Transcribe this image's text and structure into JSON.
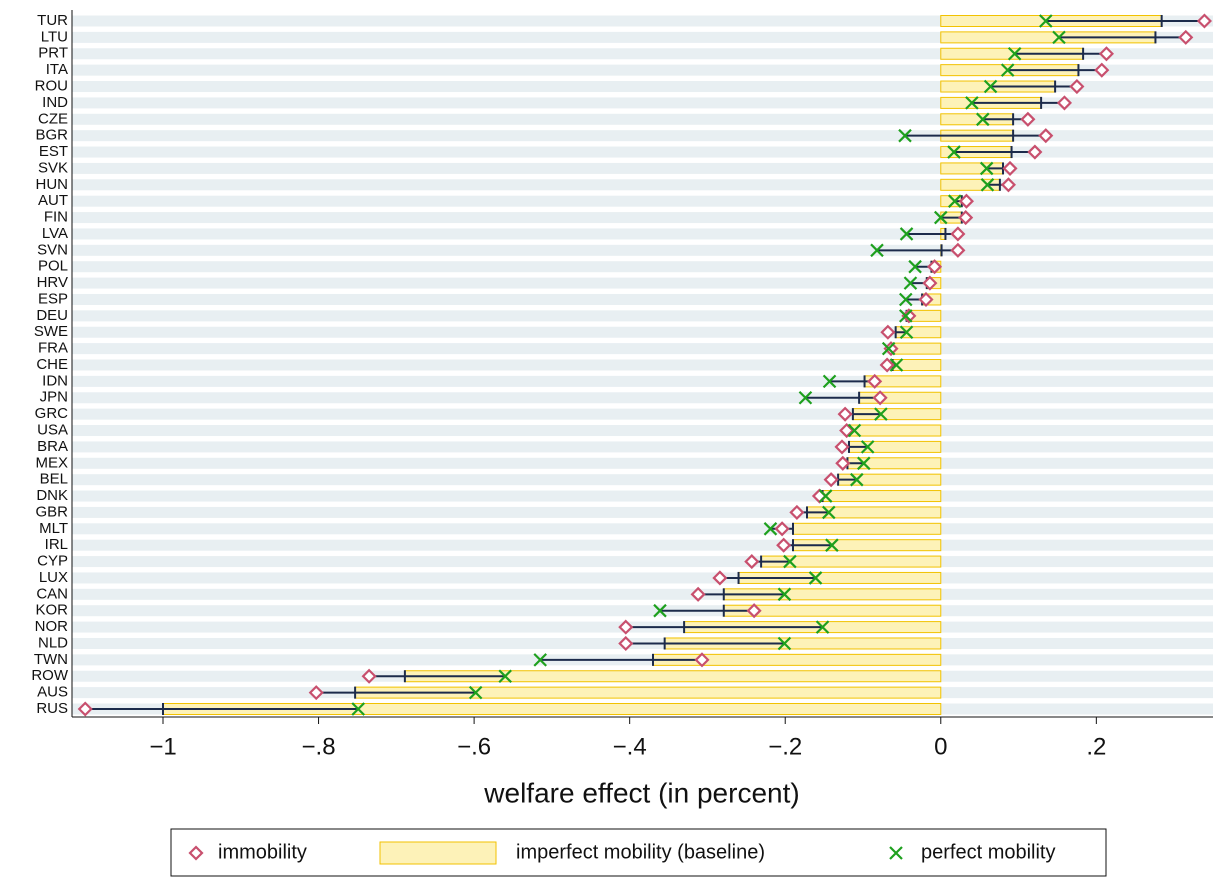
{
  "chart_data": {
    "type": "dot-bar",
    "xlabel": "welfare effect (in percent)",
    "categories": [
      "TUR",
      "LTU",
      "PRT",
      "ITA",
      "ROU",
      "IND",
      "CZE",
      "BGR",
      "EST",
      "SVK",
      "HUN",
      "AUT",
      "FIN",
      "LVA",
      "SVN",
      "POL",
      "HRV",
      "ESP",
      "DEU",
      "SWE",
      "FRA",
      "CHE",
      "IDN",
      "JPN",
      "GRC",
      "USA",
      "BRA",
      "MEX",
      "BEL",
      "DNK",
      "GBR",
      "MLT",
      "IRL",
      "CYP",
      "LUX",
      "CAN",
      "KOR",
      "NOR",
      "NLD",
      "TWN",
      "ROW",
      "AUS",
      "RUS"
    ],
    "series": [
      {
        "name": "immobility",
        "color": "#c8506e",
        "values": [
          0.339,
          0.315,
          0.213,
          0.207,
          0.175,
          0.159,
          0.112,
          0.135,
          0.121,
          0.089,
          0.087,
          0.033,
          0.032,
          0.022,
          0.022,
          -0.008,
          -0.014,
          -0.019,
          -0.041,
          -0.068,
          -0.064,
          -0.069,
          -0.085,
          -0.078,
          -0.123,
          -0.121,
          -0.127,
          -0.126,
          -0.141,
          -0.156,
          -0.185,
          -0.204,
          -0.202,
          -0.243,
          -0.284,
          -0.312,
          -0.24,
          -0.405,
          -0.405,
          -0.307,
          -0.735,
          -0.803,
          -1.1
        ]
      },
      {
        "name": "imperfect mobility (baseline)",
        "color": "#fdf2b8",
        "values": [
          0.284,
          0.276,
          0.183,
          0.177,
          0.147,
          0.129,
          0.093,
          0.093,
          0.091,
          0.08,
          0.076,
          0.027,
          0.027,
          0.006,
          0.001,
          -0.012,
          -0.018,
          -0.024,
          -0.044,
          -0.058,
          -0.064,
          -0.062,
          -0.098,
          -0.105,
          -0.113,
          -0.117,
          -0.118,
          -0.12,
          -0.132,
          -0.152,
          -0.172,
          -0.19,
          -0.19,
          -0.231,
          -0.26,
          -0.279,
          -0.279,
          -0.33,
          -0.355,
          -0.37,
          -0.689,
          -0.753,
          -1.0
        ]
      },
      {
        "name": "perfect mobility",
        "color": "#1ea01e",
        "values": [
          0.135,
          0.152,
          0.095,
          0.086,
          0.064,
          0.04,
          0.054,
          -0.046,
          0.017,
          0.059,
          0.06,
          0.018,
          0,
          -0.044,
          -0.082,
          -0.033,
          -0.039,
          -0.045,
          -0.045,
          -0.044,
          -0.067,
          -0.057,
          -0.143,
          -0.174,
          -0.077,
          -0.111,
          -0.094,
          -0.099,
          -0.108,
          -0.148,
          -0.144,
          -0.219,
          -0.14,
          -0.194,
          -0.161,
          -0.201,
          -0.361,
          -0.152,
          -0.201,
          -0.515,
          -0.56,
          -0.598,
          -0.749
        ]
      }
    ],
    "xlim": [
      -1.117,
      0.35
    ],
    "xticks": [
      {
        "value": -1,
        "label": "−1"
      },
      {
        "value": -0.8,
        "label": "−.8"
      },
      {
        "value": -0.6,
        "label": "−.6"
      },
      {
        "value": -0.4,
        "label": "−.4"
      },
      {
        "value": -0.2,
        "label": "−.2"
      },
      0,
      {
        "value": 0.2,
        "label": ".2"
      }
    ],
    "grid": true
  }
}
